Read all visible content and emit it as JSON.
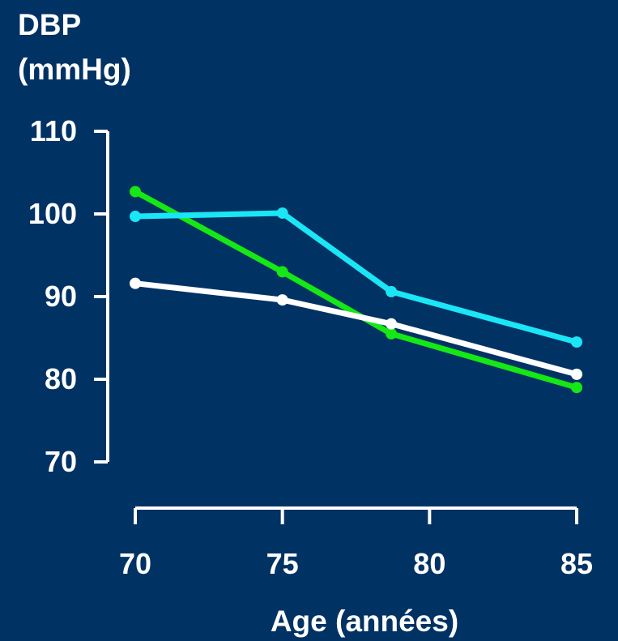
{
  "chart_data": {
    "type": "line",
    "ylabel_lines": [
      "DBP",
      "(mmHg)"
    ],
    "xlabel": "Age (années)",
    "xlim": [
      70,
      85
    ],
    "ylim": [
      70,
      110
    ],
    "x_ticks": [
      70,
      75,
      80,
      85
    ],
    "x_tick_labels": [
      "70",
      "75",
      "80",
      "85"
    ],
    "y_ticks": [
      70,
      80,
      90,
      100,
      110
    ],
    "y_tick_labels": [
      "70",
      "80",
      "90",
      "100",
      "110"
    ],
    "grid": false,
    "axis_color": "#ffffff",
    "background": "#013264",
    "series": [
      {
        "color": "#15e815",
        "points": [
          [
            70,
            102.7
          ],
          [
            75,
            93.0
          ],
          [
            78.7,
            85.5
          ],
          [
            85,
            79.0
          ]
        ]
      },
      {
        "color": "#1ae6f5",
        "points": [
          [
            70,
            99.7
          ],
          [
            75,
            100.1
          ],
          [
            78.7,
            90.6
          ],
          [
            85,
            84.5
          ]
        ]
      },
      {
        "color": "#ffffff",
        "points": [
          [
            70,
            91.6
          ],
          [
            75,
            89.6
          ],
          [
            78.7,
            86.7
          ],
          [
            85,
            80.6
          ]
        ]
      }
    ]
  }
}
